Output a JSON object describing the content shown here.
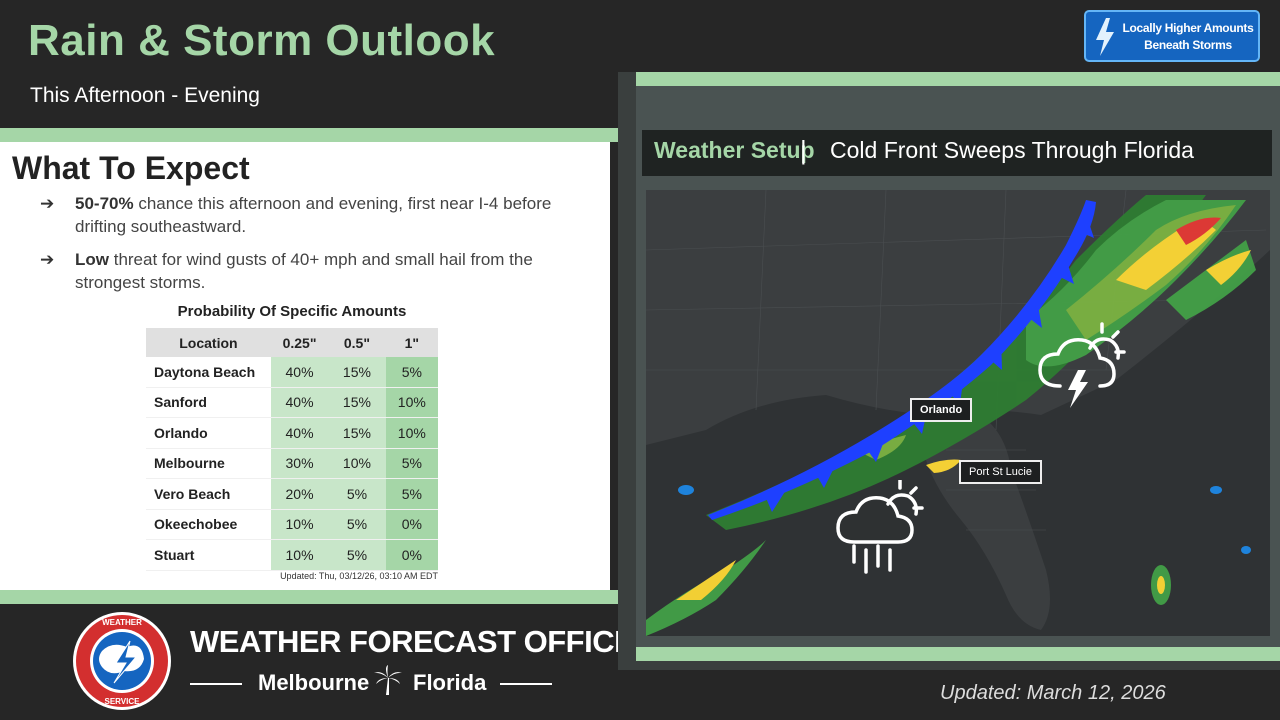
{
  "header": {
    "title": "Rain & Storm Outlook",
    "subtitle": "This Afternoon - Evening",
    "badge": {
      "line1": "Locally Higher Amounts",
      "line2": "Beneath Storms",
      "icon": "lightning-bolt-icon"
    }
  },
  "expect": {
    "title": "What To Expect",
    "bullets": [
      {
        "bold": "50-70%",
        "text": " chance this afternoon and evening, first near I-4 before drifting southeastward."
      },
      {
        "bold": "Low",
        "text": " threat for wind gusts of 40+ mph and small hail from the strongest storms."
      }
    ]
  },
  "probability_table": {
    "title": "Probability Of Specific Amounts",
    "columns": [
      "Location",
      "0.25\"",
      "0.5\"",
      "1\""
    ],
    "rows": [
      [
        "Daytona Beach",
        "40%",
        "15%",
        "5%"
      ],
      [
        "Sanford",
        "40%",
        "15%",
        "10%"
      ],
      [
        "Orlando",
        "40%",
        "15%",
        "10%"
      ],
      [
        "Melbourne",
        "30%",
        "10%",
        "5%"
      ],
      [
        "Vero Beach",
        "20%",
        "5%",
        "5%"
      ],
      [
        "Okeechobee",
        "10%",
        "5%",
        "0%"
      ],
      [
        "Stuart",
        "10%",
        "5%",
        "0%"
      ]
    ],
    "updated": "Updated: Thu, 03/12/26, 03:10 AM EDT"
  },
  "office": {
    "title": "WEATHER FORECAST OFFICE",
    "city": "Melbourne",
    "state": "Florida",
    "logo_text": "NATIONAL WEATHER SERVICE"
  },
  "map": {
    "setup_label": "Weather Setup",
    "separator": "|",
    "setup_desc": "Cold Front Sweeps Through Florida",
    "cities": [
      "Orlando",
      "Port St Lucie"
    ],
    "icons": [
      "thunderstorm-icon",
      "rain-shower-icon"
    ]
  },
  "footer": {
    "updated": "Updated: March 12, 2026"
  },
  "colors": {
    "accent_green": "#a5d6a7",
    "badge_blue": "#1565c0",
    "front_blue": "#1e40ff",
    "background": "#262626"
  }
}
